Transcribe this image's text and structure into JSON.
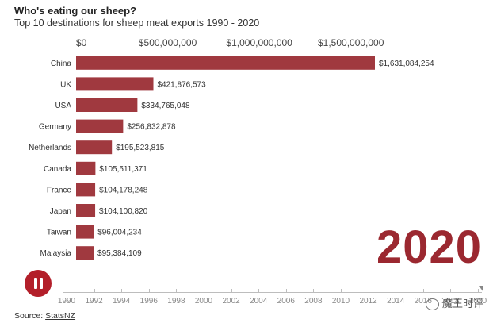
{
  "header": {
    "title": "Who's eating our sheep?",
    "subtitle": "Top 10 destinations for sheep meat exports 1990 - 2020"
  },
  "chart_data": {
    "type": "bar",
    "orientation": "horizontal",
    "title": "Who's eating our sheep?",
    "subtitle": "Top 10 destinations for sheep meat exports 1990 - 2020",
    "categories": [
      "China",
      "UK",
      "USA",
      "Germany",
      "Netherlands",
      "Canada",
      "France",
      "Japan",
      "Taiwan",
      "Malaysia"
    ],
    "values": [
      1631084254,
      421876573,
      334765048,
      256832878,
      195523815,
      105511371,
      104178248,
      104100820,
      96004234,
      95384109
    ],
    "value_labels": [
      "$1,631,084,254",
      "$421,876,573",
      "$334,765,048",
      "$256,832,878",
      "$195,523,815",
      "$105,511,371",
      "$104,178,248",
      "$104,100,820",
      "$96,004,234",
      "$95,384,109"
    ],
    "x_ticks": [
      0,
      500000000,
      1000000000,
      1500000000
    ],
    "x_tick_labels": [
      "$0",
      "$500,000,000",
      "$1,000,000,000",
      "$1,500,000,000"
    ],
    "xlim": [
      0,
      1700000000
    ],
    "axis_position": "top",
    "grid": false,
    "bar_color": "#a0393f"
  },
  "overlay": {
    "year": "2020",
    "year_color": "#9b2830"
  },
  "timeline": {
    "years": [
      "1990",
      "1992",
      "1994",
      "1996",
      "1998",
      "2000",
      "2002",
      "2004",
      "2006",
      "2008",
      "2010",
      "2012",
      "2014",
      "2016",
      "2018",
      "2020"
    ]
  },
  "controls": {
    "pause_icon": "pause-icon",
    "pause_color": "#b31f2a"
  },
  "footer": {
    "source_prefix": "Source: ",
    "source_link": "StatsNZ"
  },
  "watermark": {
    "text": "魔王时评"
  }
}
